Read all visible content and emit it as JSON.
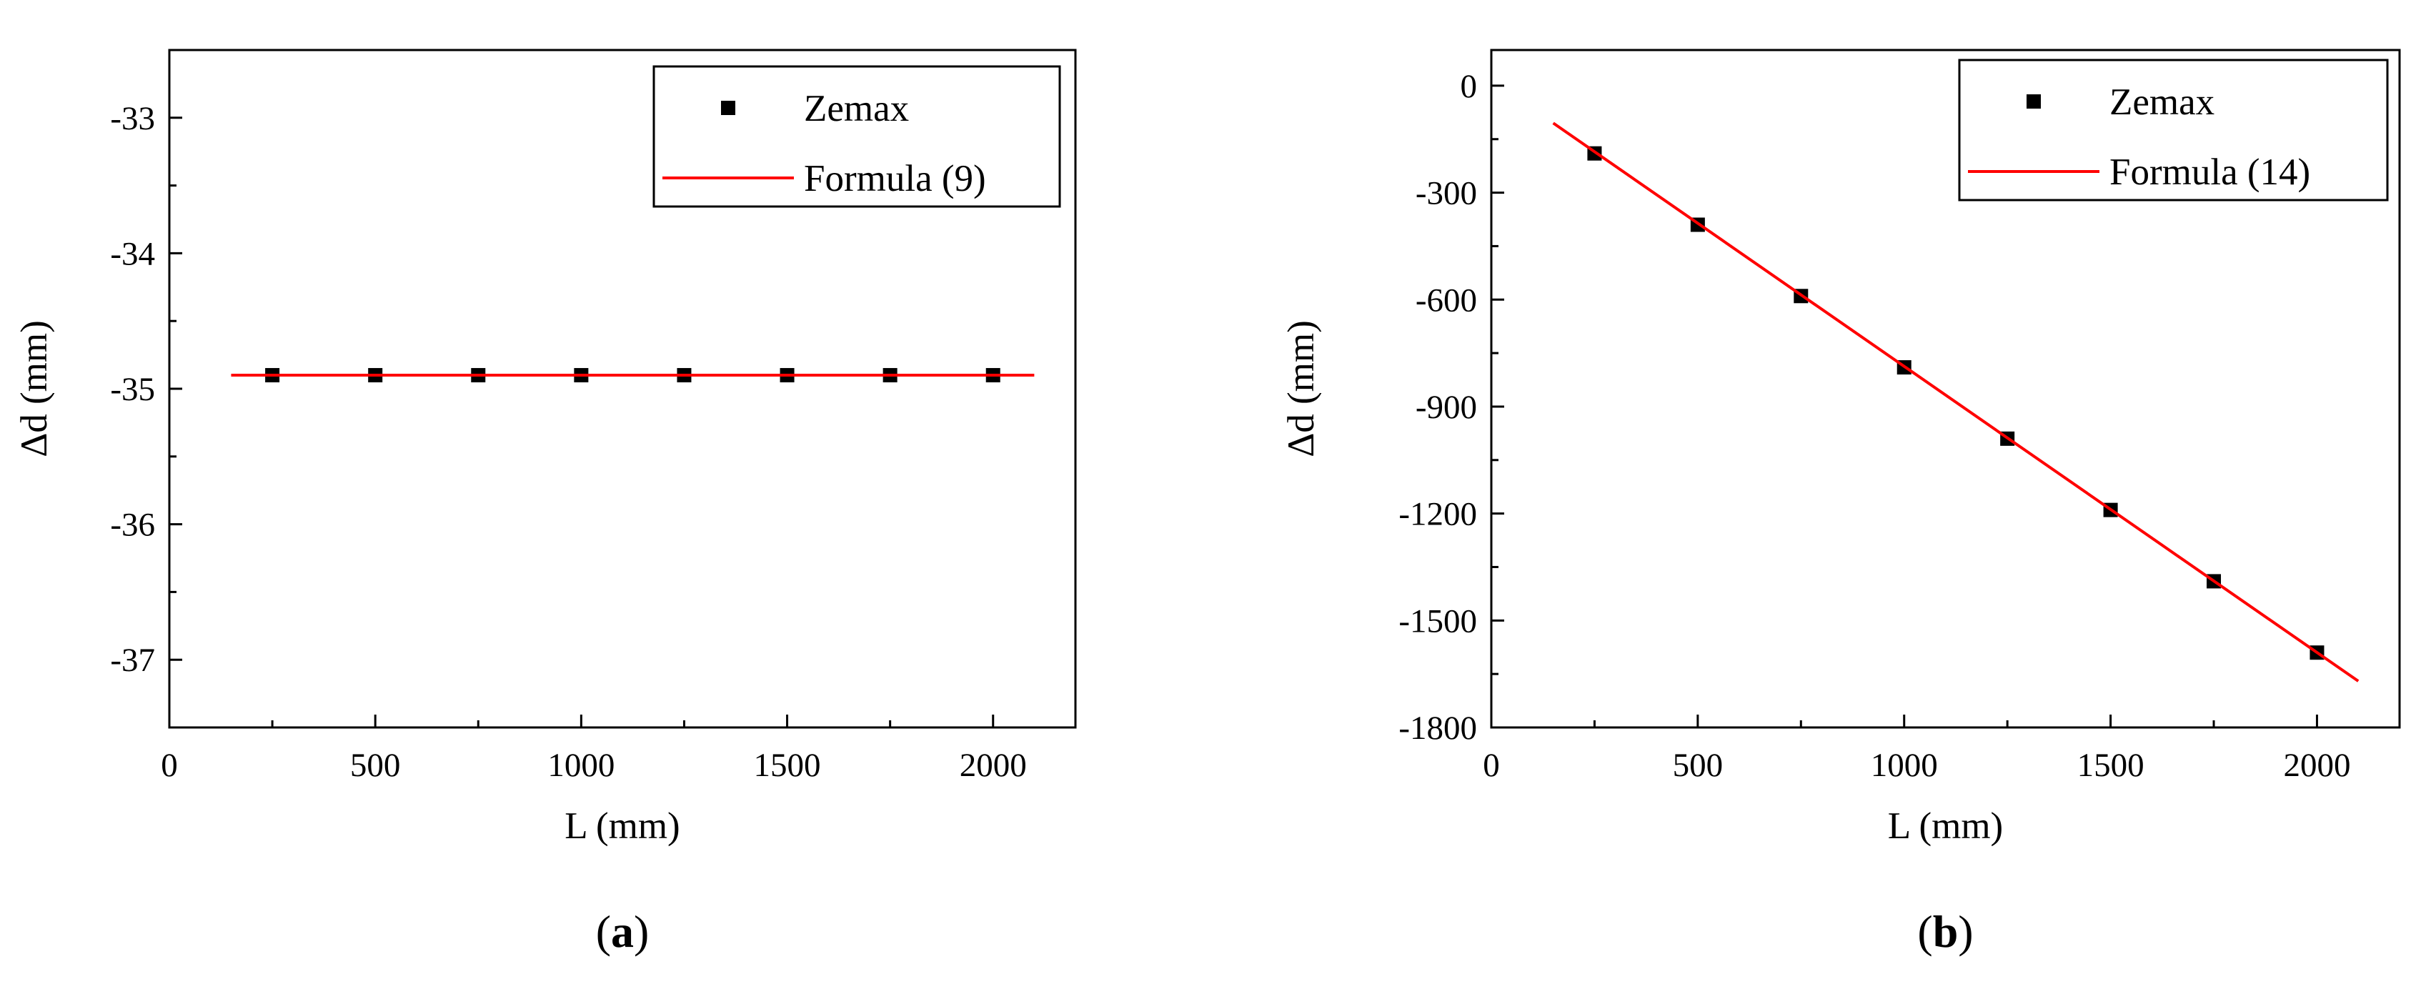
{
  "chart_data": [
    {
      "panel_label": "a",
      "type": "scatter",
      "xlabel": "L (mm)",
      "ylabel": "Δd (mm)",
      "xlim": [
        0,
        2200
      ],
      "ylim": [
        -37.5,
        -32.5
      ],
      "xticks": [
        0,
        500,
        1000,
        1500,
        2000
      ],
      "yticks": [
        -37,
        -36,
        -35,
        -34,
        -33
      ],
      "legend_position": "top-right",
      "series": [
        {
          "name": "Zemax",
          "kind": "markers",
          "marker": "square",
          "color": "#000000",
          "x": [
            250,
            500,
            750,
            1000,
            1250,
            1500,
            1750,
            2000
          ],
          "y": [
            -34.9,
            -34.9,
            -34.9,
            -34.9,
            -34.9,
            -34.9,
            -34.9,
            -34.9
          ]
        },
        {
          "name": "Formula (9)",
          "kind": "line",
          "color": "#ff0000",
          "x": [
            150,
            2100
          ],
          "y": [
            -34.9,
            -34.9
          ]
        }
      ]
    },
    {
      "panel_label": "b",
      "type": "scatter",
      "xlabel": "L (mm)",
      "ylabel": "Δd (mm)",
      "xlim": [
        0,
        2200
      ],
      "ylim": [
        -1800,
        100
      ],
      "xticks": [
        0,
        500,
        1000,
        1500,
        2000
      ],
      "yticks": [
        0,
        -300,
        -600,
        -900,
        -1200,
        -1500,
        -1800
      ],
      "legend_position": "top-right",
      "series": [
        {
          "name": "Zemax",
          "kind": "markers",
          "marker": "square",
          "color": "#000000",
          "x": [
            250,
            500,
            750,
            1000,
            1250,
            1500,
            1750,
            2000
          ],
          "y": [
            -190,
            -390,
            -590,
            -790,
            -990,
            -1190,
            -1390,
            -1590
          ]
        },
        {
          "name": "Formula (14)",
          "kind": "line",
          "color": "#ff0000",
          "x": [
            150,
            2100
          ],
          "y": [
            -105,
            -1670
          ]
        }
      ]
    }
  ]
}
